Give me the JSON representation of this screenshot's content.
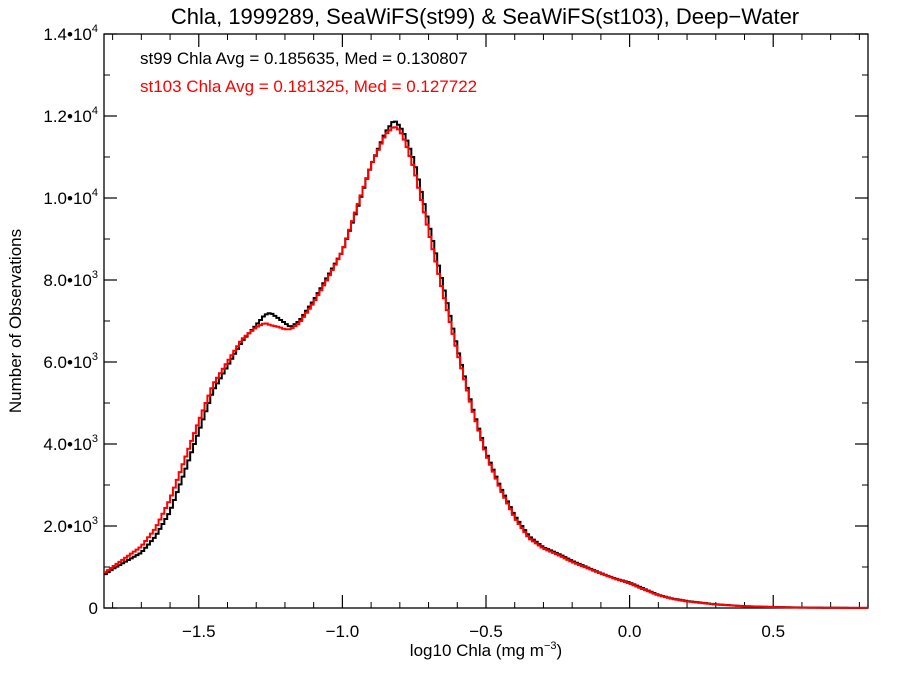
{
  "chart_data": {
    "type": "line",
    "step": true,
    "title": "Chla, 1999289, SeaWiFS(st99) & SeaWiFS(st103), Deep−Water",
    "xlabel_main": "log10 Chla (mg m",
    "xlabel_sup": "−3",
    "xlabel_close": ")",
    "ylabel": "Number of Observations",
    "xlim": [
      -1.83,
      0.83
    ],
    "ylim": [
      0,
      14000
    ],
    "x_ticks": [
      {
        "value": -1.5,
        "label": "−1.5"
      },
      {
        "value": -1.0,
        "label": "−1.0"
      },
      {
        "value": -0.5,
        "label": "−0.5"
      },
      {
        "value": 0.0,
        "label": "0.0"
      },
      {
        "value": 0.5,
        "label": "0.5"
      }
    ],
    "y_ticks": [
      {
        "value": 0,
        "mant": "0",
        "exp": ""
      },
      {
        "value": 2000,
        "mant": "2.0•10",
        "exp": "3"
      },
      {
        "value": 4000,
        "mant": "4.0•10",
        "exp": "3"
      },
      {
        "value": 6000,
        "mant": "6.0•10",
        "exp": "3"
      },
      {
        "value": 8000,
        "mant": "8.0•10",
        "exp": "3"
      },
      {
        "value": 10000,
        "mant": "1.0•10",
        "exp": "4"
      },
      {
        "value": 12000,
        "mant": "1.2•10",
        "exp": "4"
      },
      {
        "value": 14000,
        "mant": "1.4•10",
        "exp": "4"
      }
    ],
    "annotations": [
      {
        "text": "st99 Chla Avg = 0.185635, Med = 0.130807",
        "color": "#000000"
      },
      {
        "text": "st103 Chla Avg = 0.181325, Med = 0.127722",
        "color": "#ff0000"
      }
    ],
    "series": [
      {
        "color": "#000000",
        "x": [
          -1.83,
          -1.8,
          -1.75,
          -1.7,
          -1.65,
          -1.6,
          -1.55,
          -1.5,
          -1.45,
          -1.4,
          -1.35,
          -1.3,
          -1.27,
          -1.25,
          -1.22,
          -1.2,
          -1.18,
          -1.15,
          -1.1,
          -1.05,
          -1.0,
          -0.95,
          -0.9,
          -0.85,
          -0.82,
          -0.8,
          -0.78,
          -0.75,
          -0.7,
          -0.65,
          -0.6,
          -0.55,
          -0.5,
          -0.45,
          -0.4,
          -0.35,
          -0.3,
          -0.25,
          -0.2,
          -0.15,
          -0.1,
          -0.05,
          0.0,
          0.05,
          0.1,
          0.15,
          0.2,
          0.3,
          0.4,
          0.5,
          0.6,
          0.7,
          0.83
        ],
        "y": [
          800,
          950,
          1150,
          1350,
          1750,
          2350,
          3300,
          4300,
          5300,
          5900,
          6500,
          6900,
          7150,
          7200,
          7050,
          6950,
          6850,
          7000,
          7500,
          8100,
          8700,
          9700,
          10800,
          11600,
          11900,
          11750,
          11500,
          10900,
          9400,
          7900,
          6350,
          4950,
          3800,
          2950,
          2250,
          1750,
          1480,
          1330,
          1150,
          1000,
          850,
          720,
          620,
          470,
          320,
          230,
          170,
          90,
          45,
          25,
          12,
          6,
          3
        ]
      },
      {
        "color": "#ff0000",
        "x": [
          -1.83,
          -1.8,
          -1.75,
          -1.7,
          -1.65,
          -1.6,
          -1.55,
          -1.5,
          -1.45,
          -1.4,
          -1.35,
          -1.3,
          -1.27,
          -1.25,
          -1.22,
          -1.2,
          -1.18,
          -1.15,
          -1.1,
          -1.05,
          -1.0,
          -0.95,
          -0.9,
          -0.85,
          -0.82,
          -0.8,
          -0.78,
          -0.75,
          -0.7,
          -0.65,
          -0.6,
          -0.55,
          -0.5,
          -0.45,
          -0.4,
          -0.35,
          -0.3,
          -0.25,
          -0.2,
          -0.15,
          -0.1,
          -0.05,
          0.0,
          0.05,
          0.1,
          0.15,
          0.2,
          0.3,
          0.4,
          0.5,
          0.6,
          0.7,
          0.83
        ],
        "y": [
          850,
          1000,
          1250,
          1500,
          1950,
          2650,
          3600,
          4550,
          5450,
          6000,
          6550,
          6850,
          6950,
          6900,
          6850,
          6800,
          6800,
          6950,
          7450,
          8050,
          8700,
          9750,
          10800,
          11550,
          11750,
          11650,
          11350,
          10700,
          9200,
          7700,
          6250,
          4900,
          3750,
          2900,
          2200,
          1700,
          1450,
          1300,
          1120,
          980,
          840,
          710,
          600,
          450,
          310,
          220,
          160,
          85,
          42,
          22,
          10,
          5,
          3
        ]
      }
    ]
  }
}
